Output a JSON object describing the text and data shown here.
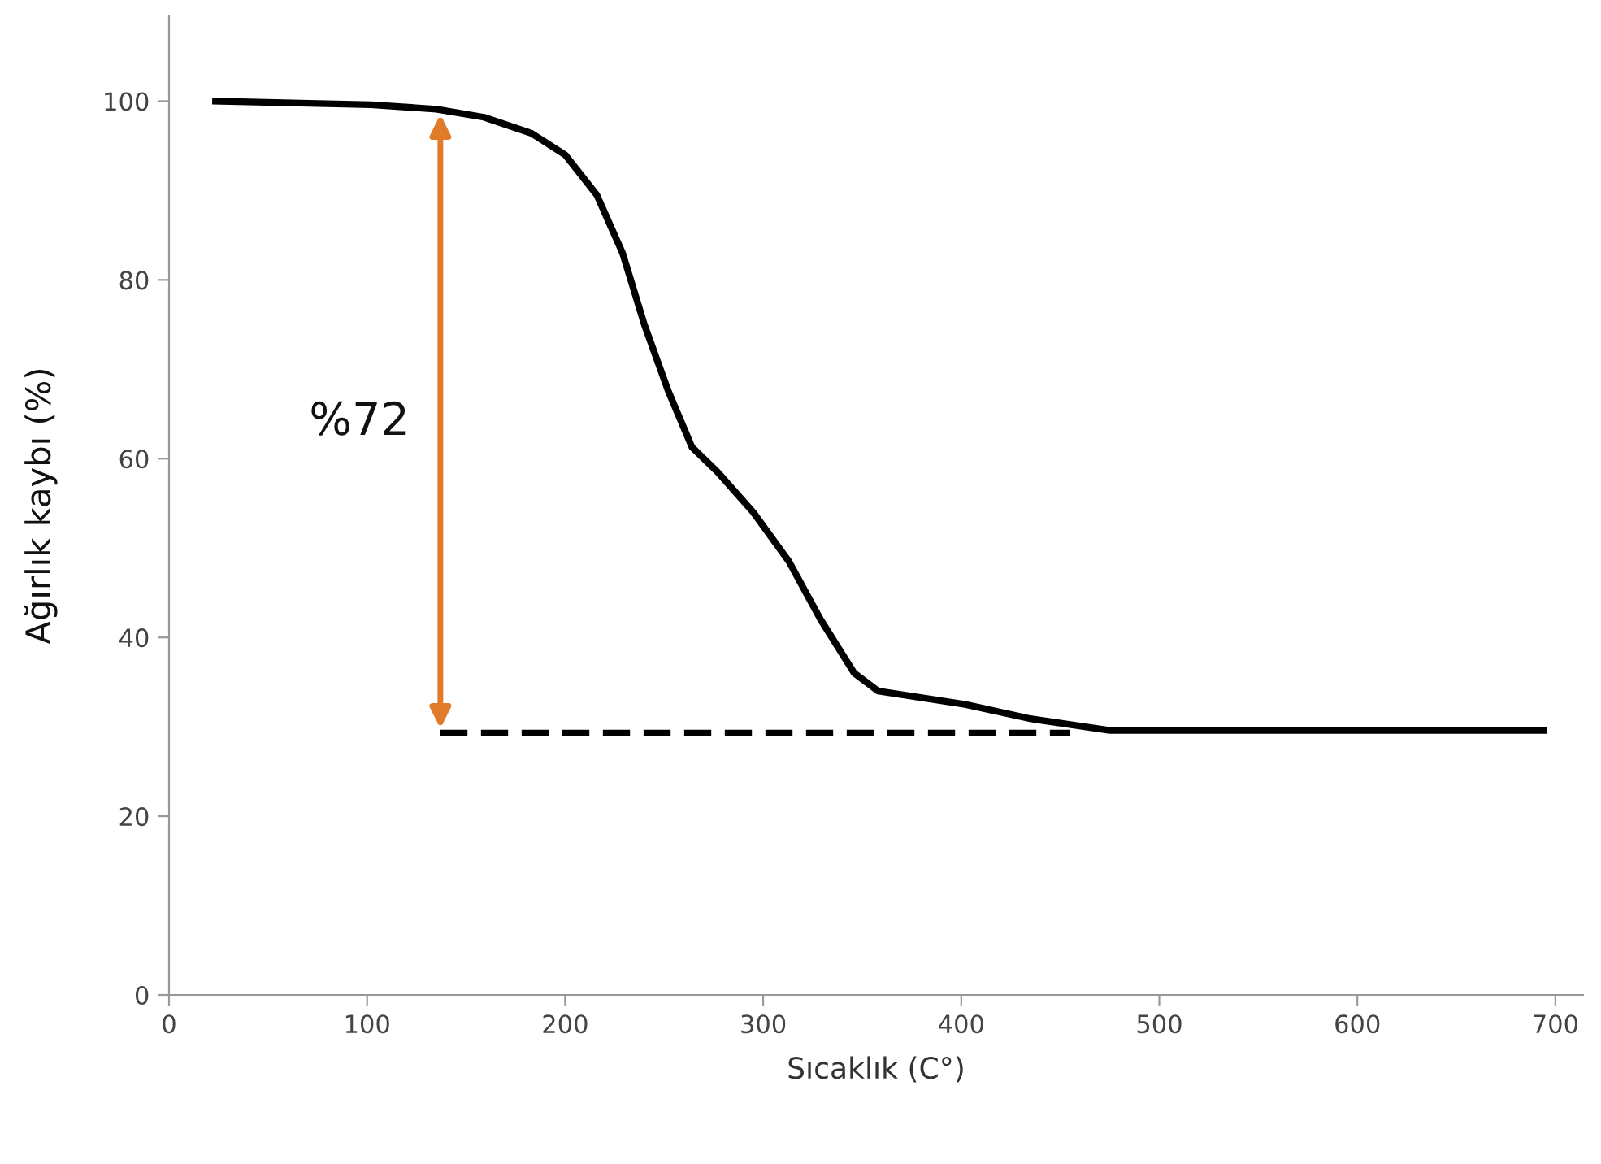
{
  "chart_data": {
    "type": "line",
    "xlabel": "Sıcaklık (C°)",
    "ylabel": "Ağırlık kaybı (%)",
    "xlim": [
      0,
      714
    ],
    "ylim": [
      0,
      109.5
    ],
    "xticks": [
      0,
      100,
      200,
      300,
      400,
      500,
      600,
      700
    ],
    "yticks": [
      0,
      20,
      40,
      60,
      80,
      100
    ],
    "grid": false,
    "legend": false,
    "marker": "none",
    "series": [
      {
        "color": "#000000",
        "line_style": "solid",
        "x": [
          23.5,
          62,
          102,
          135,
          159,
          183,
          200,
          216,
          229,
          240,
          252,
          264,
          277,
          295,
          313,
          329,
          346,
          358,
          370,
          402,
          435,
          475,
          694
        ],
        "values": [
          100,
          99.8,
          99.6,
          99.1,
          98.2,
          96.4,
          94,
          89.5,
          83,
          75,
          67.6,
          61.3,
          58.5,
          54,
          48.5,
          42,
          36,
          34,
          33.6,
          32.5,
          30.9,
          29.6,
          29.6
        ]
      },
      {
        "color": "#000000",
        "line_style": "dashed",
        "x": [
          137,
          455
        ],
        "values": [
          29.3,
          29.3
        ]
      }
    ],
    "annotations": [
      "%72"
    ]
  }
}
